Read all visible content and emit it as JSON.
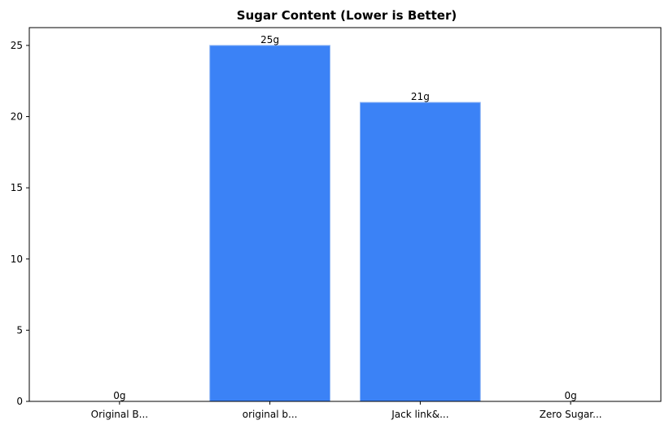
{
  "chart_data": {
    "type": "bar",
    "title": "Sugar Content (Lower is Better)",
    "xlabel": "",
    "ylabel": "",
    "categories": [
      "Original B...",
      "original b...",
      "Jack link&...",
      "Zero Sugar..."
    ],
    "values": [
      0,
      25,
      21,
      0
    ],
    "data_labels": [
      "0g",
      "25g",
      "21g",
      "0g"
    ],
    "ylim": [
      0,
      26.25
    ],
    "yticks": [
      0,
      5,
      10,
      15,
      20,
      25
    ],
    "grid": false,
    "bar_color": "#3b82f6",
    "bar_edge_color": "#93b8f5"
  }
}
